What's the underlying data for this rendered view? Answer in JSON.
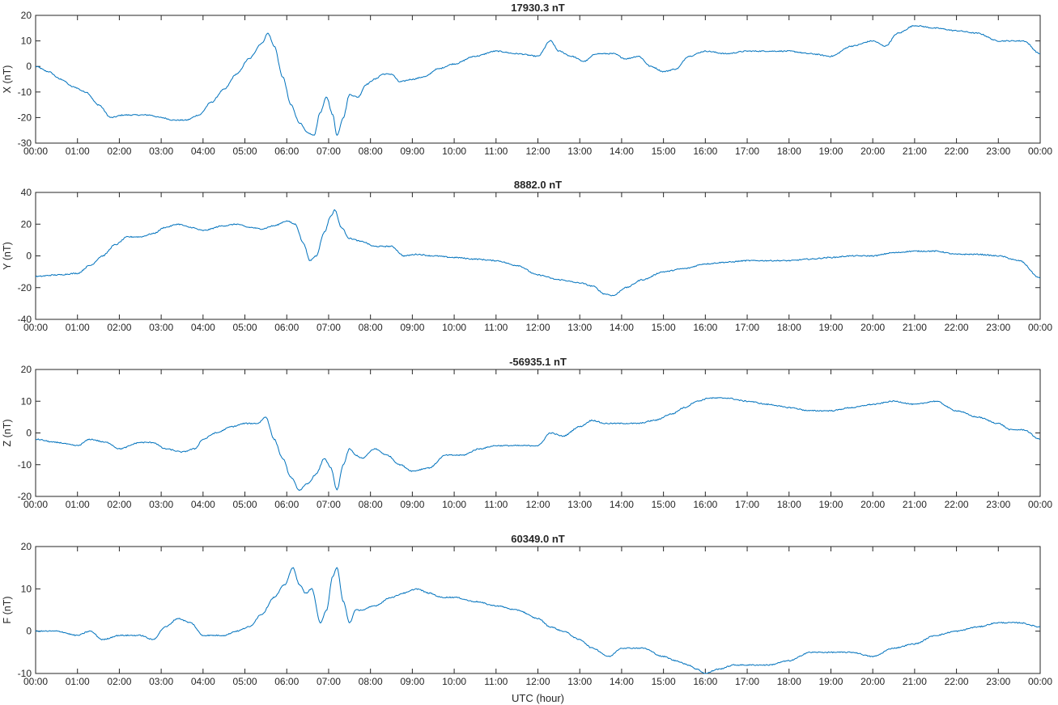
{
  "figure": {
    "xlabel": "UTC (hour)",
    "x_tick_labels": [
      "00:00",
      "01:00",
      "02:00",
      "03:00",
      "04:00",
      "05:00",
      "06:00",
      "07:00",
      "08:00",
      "09:00",
      "10:00",
      "11:00",
      "12:00",
      "13:00",
      "14:00",
      "15:00",
      "16:00",
      "17:00",
      "18:00",
      "19:00",
      "20:00",
      "21:00",
      "22:00",
      "23:00",
      "00:00"
    ],
    "line_color": "#0072BD"
  },
  "chart_data": [
    {
      "type": "line",
      "title": "17930.3 nT",
      "ylabel": "X (nT)",
      "xlim": [
        0,
        24
      ],
      "ylim": [
        -30,
        20
      ],
      "yticks": [
        -30,
        -20,
        -10,
        0,
        10,
        20
      ],
      "grid": false,
      "x": [
        0,
        0.3,
        0.6,
        0.9,
        1.2,
        1.5,
        1.8,
        2.1,
        2.4,
        2.7,
        3.0,
        3.3,
        3.6,
        3.9,
        4.2,
        4.5,
        4.8,
        5.1,
        5.4,
        5.55,
        5.7,
        5.9,
        6.1,
        6.3,
        6.5,
        6.65,
        6.8,
        6.95,
        7.1,
        7.2,
        7.35,
        7.5,
        7.7,
        7.9,
        8.1,
        8.3,
        8.5,
        8.7,
        9.0,
        9.3,
        9.6,
        10.0,
        10.5,
        11.0,
        11.5,
        12.0,
        12.3,
        12.5,
        12.8,
        13.1,
        13.4,
        13.8,
        14.1,
        14.4,
        14.7,
        15.0,
        15.3,
        15.6,
        16.0,
        16.5,
        17.0,
        17.5,
        18.0,
        18.5,
        19.0,
        19.5,
        20.0,
        20.3,
        20.6,
        21.0,
        21.5,
        22.0,
        22.5,
        23.0,
        23.3,
        23.6,
        24.0
      ],
      "y": [
        0,
        -2,
        -5,
        -8,
        -10,
        -15,
        -20,
        -19,
        -19,
        -19,
        -20,
        -21,
        -21,
        -19,
        -14,
        -9,
        -3,
        3,
        9,
        13,
        8,
        -4,
        -15,
        -22,
        -26,
        -27,
        -18,
        -12,
        -19,
        -27,
        -20,
        -11,
        -12,
        -7,
        -5,
        -3,
        -3,
        -6,
        -5,
        -4,
        -1,
        1,
        4,
        6,
        5,
        4,
        10,
        6,
        4,
        2,
        5,
        5,
        3,
        4,
        0,
        -2,
        -1,
        4,
        6,
        5,
        6,
        6,
        6,
        5,
        4,
        8,
        10,
        8,
        13,
        16,
        15,
        14,
        13,
        10,
        10,
        10,
        5
      ]
    },
    {
      "type": "line",
      "title": "8882.0 nT",
      "ylabel": "Y (nT)",
      "xlim": [
        0,
        24
      ],
      "ylim": [
        -40,
        40
      ],
      "yticks": [
        -40,
        -20,
        0,
        20,
        40
      ],
      "grid": false,
      "x": [
        0,
        0.5,
        1.0,
        1.3,
        1.6,
        1.9,
        2.2,
        2.5,
        2.8,
        3.1,
        3.4,
        3.7,
        4.0,
        4.5,
        4.8,
        5.1,
        5.4,
        5.7,
        6.0,
        6.2,
        6.4,
        6.55,
        6.7,
        6.9,
        7.05,
        7.15,
        7.3,
        7.5,
        7.8,
        8.1,
        8.5,
        8.8,
        9.1,
        9.5,
        10.0,
        10.5,
        11.0,
        11.5,
        12.0,
        12.5,
        13.0,
        13.3,
        13.6,
        13.8,
        14.1,
        14.5,
        15.0,
        15.5,
        16.0,
        16.5,
        17.0,
        17.5,
        18.0,
        18.5,
        19.0,
        19.5,
        20.0,
        20.5,
        21.0,
        21.5,
        22.0,
        22.5,
        23.0,
        23.5,
        24.0
      ],
      "y": [
        -13,
        -12,
        -11,
        -6,
        0,
        7,
        12,
        12,
        14,
        18,
        20,
        18,
        16,
        19,
        20,
        18,
        17,
        19,
        22,
        20,
        8,
        -3,
        0,
        15,
        25,
        29,
        18,
        11,
        9,
        6,
        6,
        0,
        1,
        0,
        -1,
        -2,
        -3,
        -6,
        -12,
        -15,
        -17,
        -19,
        -24,
        -25,
        -20,
        -15,
        -10,
        -8,
        -5,
        -4,
        -3,
        -3,
        -3,
        -2,
        -1,
        0,
        0,
        2,
        3,
        3,
        1,
        1,
        0,
        -3,
        -14
      ]
    },
    {
      "type": "line",
      "title": "-56935.1 nT",
      "ylabel": "Z (nT)",
      "xlim": [
        0,
        24
      ],
      "ylim": [
        -20,
        20
      ],
      "yticks": [
        -20,
        -10,
        0,
        10,
        20
      ],
      "grid": false,
      "x": [
        0,
        0.5,
        1.0,
        1.3,
        1.7,
        2.0,
        2.5,
        2.8,
        3.1,
        3.5,
        3.8,
        4.0,
        4.3,
        4.7,
        5.0,
        5.3,
        5.5,
        5.7,
        5.9,
        6.1,
        6.3,
        6.5,
        6.7,
        6.9,
        7.05,
        7.2,
        7.35,
        7.5,
        7.65,
        7.8,
        8.1,
        8.4,
        8.7,
        9.0,
        9.4,
        9.8,
        10.2,
        10.6,
        11.0,
        11.5,
        12.0,
        12.3,
        12.6,
        13.0,
        13.3,
        13.6,
        14.0,
        14.4,
        14.8,
        15.2,
        15.5,
        15.8,
        16.1,
        16.5,
        17.0,
        17.5,
        18.0,
        18.5,
        19.0,
        19.5,
        20.0,
        20.5,
        21.0,
        21.5,
        22.0,
        22.5,
        23.0,
        23.3,
        23.6,
        24.0
      ],
      "y": [
        -2,
        -3,
        -4,
        -2,
        -3,
        -5,
        -3,
        -3,
        -5,
        -6,
        -5,
        -2,
        0,
        2,
        3,
        3,
        5,
        -2,
        -8,
        -14,
        -18,
        -16,
        -13,
        -8,
        -11,
        -18,
        -10,
        -5,
        -7,
        -8,
        -5,
        -7,
        -10,
        -12,
        -11,
        -7,
        -7,
        -5,
        -4,
        -4,
        -4,
        0,
        -1,
        2,
        4,
        3,
        3,
        3,
        4,
        6,
        8,
        10,
        11,
        11,
        10,
        9,
        8,
        7,
        7,
        8,
        9,
        10,
        9,
        10,
        7,
        5,
        3,
        1,
        1,
        -2
      ]
    },
    {
      "type": "line",
      "title": "60349.0 nT",
      "ylabel": "F (nT)",
      "xlim": [
        0,
        24
      ],
      "ylim": [
        -10,
        20
      ],
      "yticks": [
        -10,
        0,
        10,
        20
      ],
      "grid": false,
      "x": [
        0,
        0.5,
        1.0,
        1.3,
        1.6,
        2.0,
        2.5,
        2.8,
        3.1,
        3.4,
        3.7,
        4.0,
        4.5,
        4.8,
        5.1,
        5.4,
        5.7,
        5.95,
        6.15,
        6.3,
        6.45,
        6.6,
        6.8,
        6.95,
        7.1,
        7.2,
        7.35,
        7.5,
        7.65,
        7.8,
        8.1,
        8.5,
        8.8,
        9.1,
        9.4,
        9.7,
        10.0,
        10.5,
        11.0,
        11.5,
        12.0,
        12.3,
        12.6,
        13.0,
        13.3,
        13.7,
        14.0,
        14.5,
        15.0,
        15.3,
        15.6,
        15.8,
        16.0,
        16.3,
        16.7,
        17.0,
        17.5,
        18.0,
        18.5,
        19.0,
        19.5,
        20.0,
        20.5,
        21.0,
        21.5,
        22.0,
        22.5,
        23.0,
        23.5,
        24.0
      ],
      "y": [
        0,
        0,
        -1,
        0,
        -2,
        -1,
        -1,
        -2,
        1,
        3,
        2,
        -1,
        -1,
        0,
        1,
        4,
        8,
        11,
        15,
        11,
        9,
        10,
        2,
        5,
        13,
        15,
        7,
        2,
        5,
        5,
        6,
        8,
        9,
        10,
        9,
        8,
        8,
        7,
        6,
        5,
        3,
        1,
        0,
        -2,
        -4,
        -6,
        -4,
        -4,
        -6,
        -7,
        -8,
        -9,
        -10,
        -9,
        -8,
        -8,
        -8,
        -7,
        -5,
        -5,
        -5,
        -6,
        -4,
        -3,
        -1,
        0,
        1,
        2,
        2,
        1
      ]
    }
  ]
}
